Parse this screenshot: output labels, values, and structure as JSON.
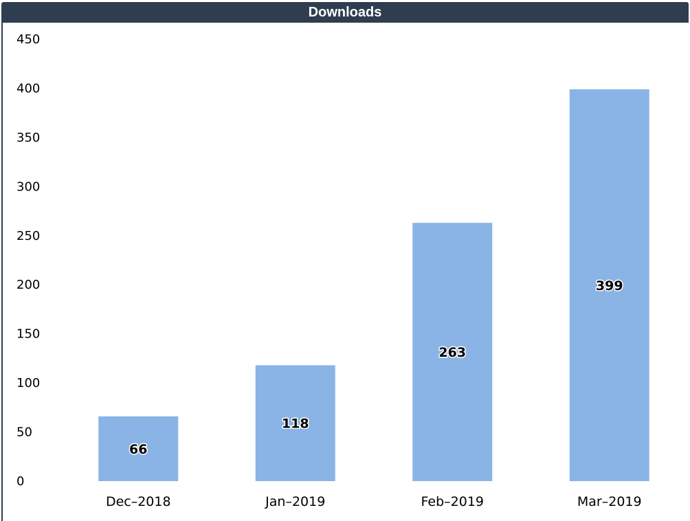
{
  "chart_data": {
    "type": "bar",
    "title": "Downloads",
    "categories": [
      "Dec–2018",
      "Jan–2019",
      "Feb–2019",
      "Mar–2019"
    ],
    "values": [
      66,
      118,
      263,
      399
    ],
    "data_labels": [
      "66",
      "118",
      "263",
      "399"
    ],
    "yticks": [
      "0",
      "50",
      "100",
      "150",
      "200",
      "250",
      "300",
      "350",
      "400",
      "450"
    ],
    "ylim": [
      0,
      450
    ],
    "grid": false,
    "legend": "none"
  },
  "colors": {
    "bar": "#8ab4e6",
    "title_bar": "#2e3d50",
    "title_text": "#ffffff"
  }
}
